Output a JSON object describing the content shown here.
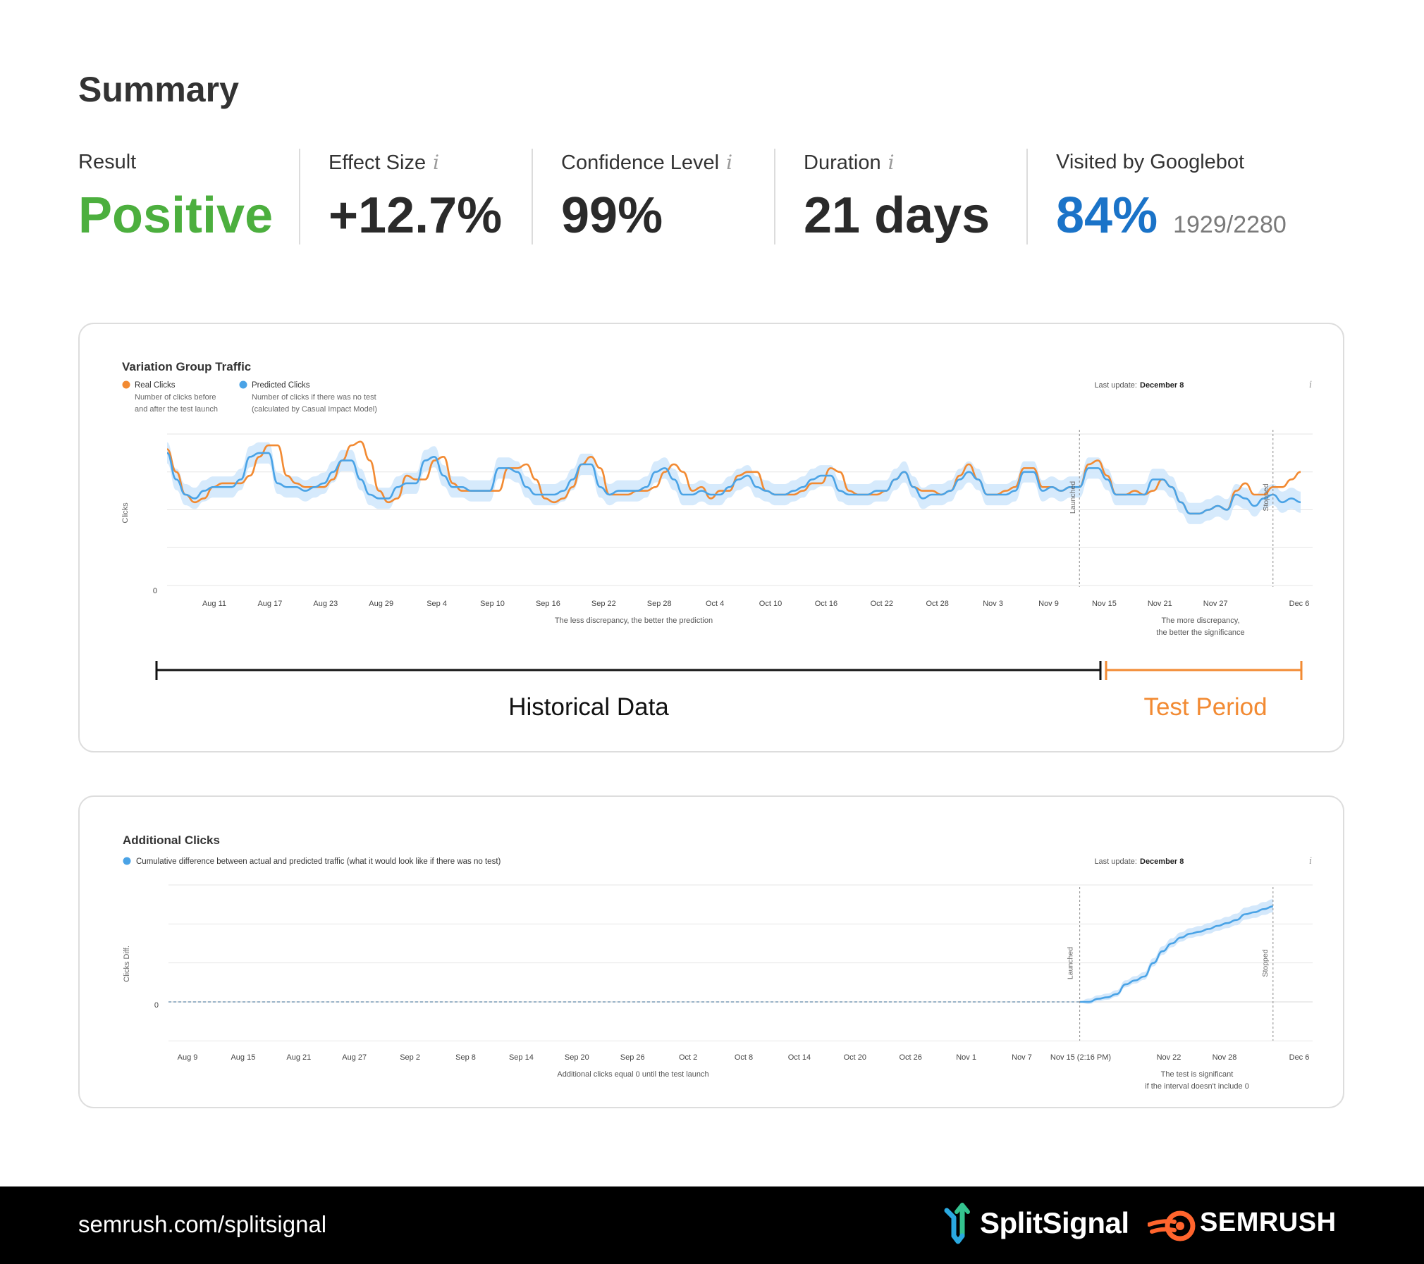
{
  "summary": {
    "title": "Summary",
    "metrics": [
      {
        "label": "Result",
        "value": "Positive",
        "info": false,
        "color": "#4caf3e"
      },
      {
        "label": "Effect Size",
        "value": "+12.7%",
        "info": true,
        "color": "#2a2a2a"
      },
      {
        "label": "Confidence Level",
        "value": "99%",
        "info": true,
        "color": "#2a2a2a"
      },
      {
        "label": "Duration",
        "value": "21 days",
        "info": true,
        "color": "#2a2a2a"
      },
      {
        "label": "Visited by Googlebot",
        "value": "84%",
        "sub": "1929/2280",
        "info": false,
        "color": "#1a73c8"
      }
    ],
    "info_glyph": "i"
  },
  "colors": {
    "real": "#f28a32",
    "predicted": "#4aa3e6",
    "band": "#cfe6fb",
    "historical": "#111111",
    "test": "#f28a32"
  },
  "chart_data": [
    {
      "type": "line",
      "title": "Variation Group Traffic",
      "legend": [
        {
          "name": "Real Clicks",
          "desc": [
            "Number of clicks before",
            "and after the test launch"
          ],
          "color": "#f28a32"
        },
        {
          "name": "Predicted Clicks",
          "desc": [
            "Number of clicks if there was no test",
            "(calculated by Casual Impact Model)"
          ],
          "color": "#4aa3e6"
        }
      ],
      "last_update_label": "Last update:",
      "last_update_value": "December 8",
      "ylabel": "Clicks",
      "y_tick_labels": [
        "0"
      ],
      "x_tick_labels": [
        "Aug 11",
        "Aug 17",
        "Aug 23",
        "Aug 29",
        "Sep 4",
        "Sep 10",
        "Sep 16",
        "Sep 22",
        "Sep 28",
        "Oct 4",
        "Oct 10",
        "Oct 16",
        "Oct 22",
        "Oct 28",
        "Nov 3",
        "Nov 9",
        "Nov 15",
        "Nov 21",
        "Nov 27",
        "Dec 6"
      ],
      "markers": [
        {
          "label": "Launched",
          "at": "Nov 15"
        },
        {
          "label": "Stopped",
          "at": "Dec 6"
        }
      ],
      "note_left": "The less discrepancy, the better the prediction",
      "note_right": [
        "The more discrepancy,",
        "the better the significance"
      ],
      "ylim": [
        0,
        4
      ],
      "days": 124,
      "launch_day": 99,
      "stop_day": 120,
      "series": [
        {
          "name": "Real Clicks",
          "values": [
            3.6,
            3.0,
            2.4,
            2.2,
            2.3,
            2.6,
            2.7,
            2.7,
            2.7,
            2.9,
            3.4,
            3.7,
            3.7,
            2.9,
            2.7,
            2.6,
            2.6,
            2.6,
            2.8,
            3.3,
            3.7,
            3.8,
            3.3,
            2.5,
            2.2,
            2.3,
            2.9,
            2.8,
            2.8,
            3.3,
            3.4,
            2.7,
            2.5,
            2.5,
            2.5,
            2.5,
            2.5,
            3.1,
            3.1,
            3.2,
            2.8,
            2.3,
            2.2,
            2.3,
            2.6,
            3.2,
            3.4,
            3.1,
            2.4,
            2.4,
            2.4,
            2.5,
            2.5,
            2.6,
            3.0,
            3.2,
            3.0,
            2.5,
            2.6,
            2.3,
            2.5,
            2.5,
            2.9,
            3.0,
            3.0,
            2.5,
            2.4,
            2.4,
            2.4,
            2.5,
            2.7,
            2.7,
            3.1,
            3.0,
            2.5,
            2.4,
            2.4,
            2.4,
            2.5,
            2.8,
            3.0,
            2.6,
            2.5,
            2.5,
            2.4,
            2.5,
            2.9,
            3.2,
            2.8,
            2.4,
            2.4,
            2.5,
            2.6,
            3.1,
            3.1,
            2.6,
            2.6,
            2.5,
            2.6,
            2.6,
            3.2,
            3.3,
            2.9,
            2.4,
            2.4,
            2.5,
            2.4,
            2.5,
            2.8,
            2.6,
            2.2,
            1.9,
            1.9,
            2.0,
            2.1,
            2.0,
            2.5,
            2.7,
            2.4,
            2.4,
            2.6,
            2.6,
            2.8,
            3.0
          ],
          "color": "#f28a32"
        },
        {
          "name": "Predicted Clicks",
          "values": [
            3.5,
            2.8,
            2.4,
            2.3,
            2.5,
            2.6,
            2.6,
            2.6,
            2.8,
            3.4,
            3.5,
            3.5,
            2.7,
            2.6,
            2.6,
            2.5,
            2.6,
            2.7,
            3.0,
            3.3,
            3.3,
            2.8,
            2.4,
            2.3,
            2.3,
            2.6,
            2.7,
            2.7,
            3.3,
            3.4,
            2.9,
            2.6,
            2.6,
            2.5,
            2.5,
            2.5,
            3.1,
            3.1,
            3.0,
            2.6,
            2.4,
            2.4,
            2.4,
            2.5,
            2.8,
            3.2,
            3.2,
            2.6,
            2.4,
            2.5,
            2.5,
            2.5,
            2.6,
            3.0,
            3.1,
            2.8,
            2.4,
            2.4,
            2.5,
            2.4,
            2.4,
            2.6,
            2.8,
            2.9,
            2.6,
            2.5,
            2.4,
            2.4,
            2.5,
            2.6,
            2.8,
            2.9,
            2.9,
            2.5,
            2.4,
            2.4,
            2.4,
            2.5,
            2.5,
            2.8,
            3.0,
            2.6,
            2.3,
            2.4,
            2.4,
            2.5,
            2.8,
            3.0,
            2.8,
            2.4,
            2.4,
            2.4,
            2.5,
            3.0,
            3.0,
            2.5,
            2.6,
            2.5,
            2.6,
            2.6,
            3.1,
            3.1,
            2.8,
            2.4,
            2.4,
            2.4,
            2.4,
            2.8,
            2.8,
            2.6,
            2.2,
            1.9,
            1.9,
            2.0,
            2.1,
            2.0,
            2.4,
            2.3,
            2.1,
            2.3,
            2.4,
            2.2,
            2.3,
            2.2
          ],
          "color": "#4aa3e6"
        }
      ]
    },
    {
      "type": "area",
      "title": "Additional Clicks",
      "legend": [
        {
          "name": "Cumulative difference between actual and predicted traffic (what it would look like if there was no test)",
          "color": "#4aa3e6"
        }
      ],
      "last_update_label": "Last update:",
      "last_update_value": "December 8",
      "ylabel": "Clicks Diff.",
      "y_tick_labels": [
        "0"
      ],
      "x_tick_labels": [
        "Aug 9",
        "Aug 15",
        "Aug 21",
        "Aug 27",
        "Sep 2",
        "Sep 8",
        "Sep 14",
        "Sep 20",
        "Sep 26",
        "Oct 2",
        "Oct 8",
        "Oct 14",
        "Oct 20",
        "Oct 26",
        "Nov 1",
        "Nov 7",
        "Nov 15 (2:16 PM)",
        "Nov 22",
        "Nov 28",
        "Dec 6"
      ],
      "markers": [
        {
          "label": "Launched",
          "at": "Nov 15 (2:16 PM)"
        },
        {
          "label": "Stopped",
          "at": "Dec 6"
        }
      ],
      "note_left": "Additional clicks equal 0 until the test launch",
      "note_right": [
        "The test is significant",
        "if the interval doesn't include 0"
      ],
      "ylim": [
        -1,
        3
      ],
      "launch_day": 99,
      "stop_day": 120,
      "series": [
        {
          "name": "Cumulative difference",
          "x_days": [
            99,
            100,
            101,
            102,
            103,
            104,
            105,
            106,
            107,
            108,
            109,
            110,
            111,
            112,
            113,
            114,
            115,
            116,
            117,
            118,
            119,
            120
          ],
          "values": [
            0.0,
            0.0,
            0.08,
            0.12,
            0.2,
            0.45,
            0.55,
            0.65,
            1.0,
            1.3,
            1.5,
            1.65,
            1.75,
            1.8,
            1.87,
            1.95,
            2.02,
            2.1,
            2.25,
            2.3,
            2.38,
            2.45
          ],
          "color": "#4aa3e6"
        }
      ]
    }
  ],
  "timeline": {
    "historical_label": "Historical Data",
    "test_label": "Test Period"
  },
  "footer": {
    "url": "semrush.com/splitsignal",
    "brand_splitsignal": "SplitSignal",
    "brand_semrush": "SEMRUSH"
  }
}
